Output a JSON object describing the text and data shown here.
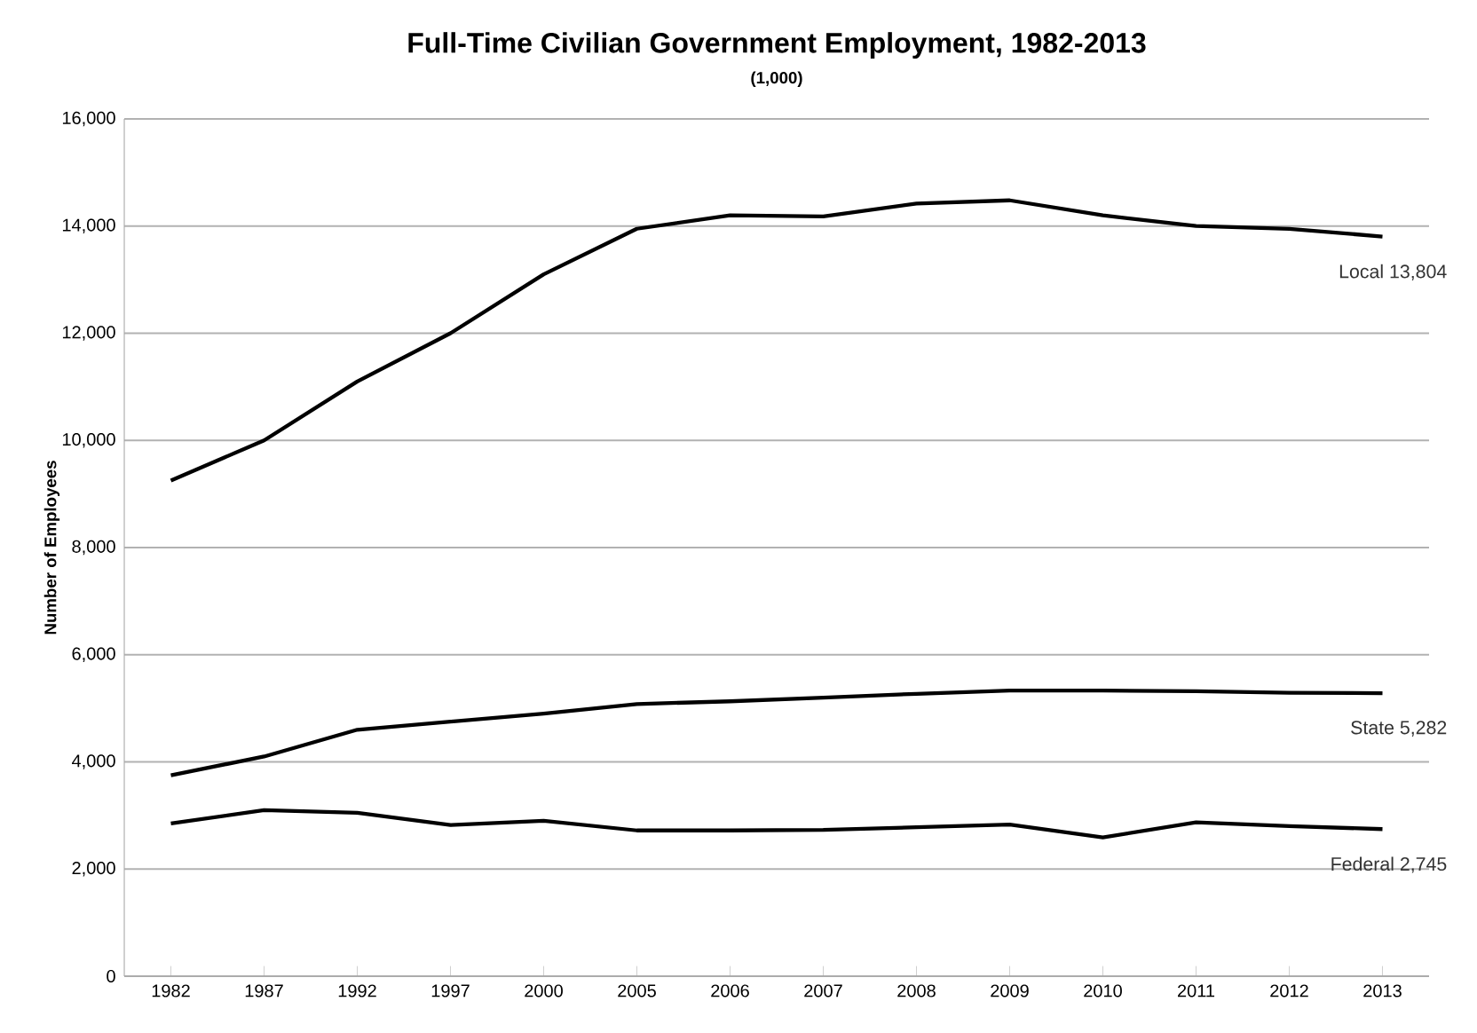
{
  "chart_data": {
    "type": "line",
    "title": "Full-Time Civilian Government Employment, 1982-2013",
    "subtitle": "(1,000)",
    "ylabel": "Number of Employees",
    "categories": [
      "1982",
      "1987",
      "1992",
      "1997",
      "2000",
      "2005",
      "2006",
      "2007",
      "2008",
      "2009",
      "2010",
      "2011",
      "2012",
      "2013"
    ],
    "series": [
      {
        "color": "#000000",
        "values": [
          9250,
          10000,
          11100,
          12000,
          13100,
          13950,
          14200,
          14180,
          14420,
          14480,
          14200,
          14000,
          13950,
          13804
        ]
      },
      {
        "color": "#000000",
        "values": [
          3750,
          4100,
          4600,
          4750,
          4900,
          5080,
          5130,
          5200,
          5270,
          5330,
          5330,
          5320,
          5290,
          5282
        ]
      },
      {
        "color": "#000000",
        "values": [
          2850,
          3100,
          3050,
          2820,
          2900,
          2720,
          2720,
          2730,
          2780,
          2830,
          2590,
          2870,
          2800,
          2745
        ]
      }
    ],
    "annotations": [
      {
        "text": "Local 13,804",
        "x": "2013",
        "y": 13804
      },
      {
        "text": "State 5,282",
        "x": "2013",
        "y": 5282
      },
      {
        "text": "Federal 2,745",
        "x": "2013",
        "y": 2745
      }
    ],
    "ylim": [
      0,
      16000
    ],
    "yticks": [
      {
        "value": 0,
        "label": "0"
      },
      {
        "value": 2000,
        "label": "2,000"
      },
      {
        "value": 4000,
        "label": "4,000"
      },
      {
        "value": 6000,
        "label": "6,000"
      },
      {
        "value": 8000,
        "label": "8,000"
      },
      {
        "value": 10000,
        "label": "10,000"
      },
      {
        "value": 12000,
        "label": "12,000"
      },
      {
        "value": 14000,
        "label": "14,000"
      },
      {
        "value": 16000,
        "label": "16,000"
      }
    ],
    "grid": "y",
    "marker": "none",
    "line_style": "solid"
  }
}
